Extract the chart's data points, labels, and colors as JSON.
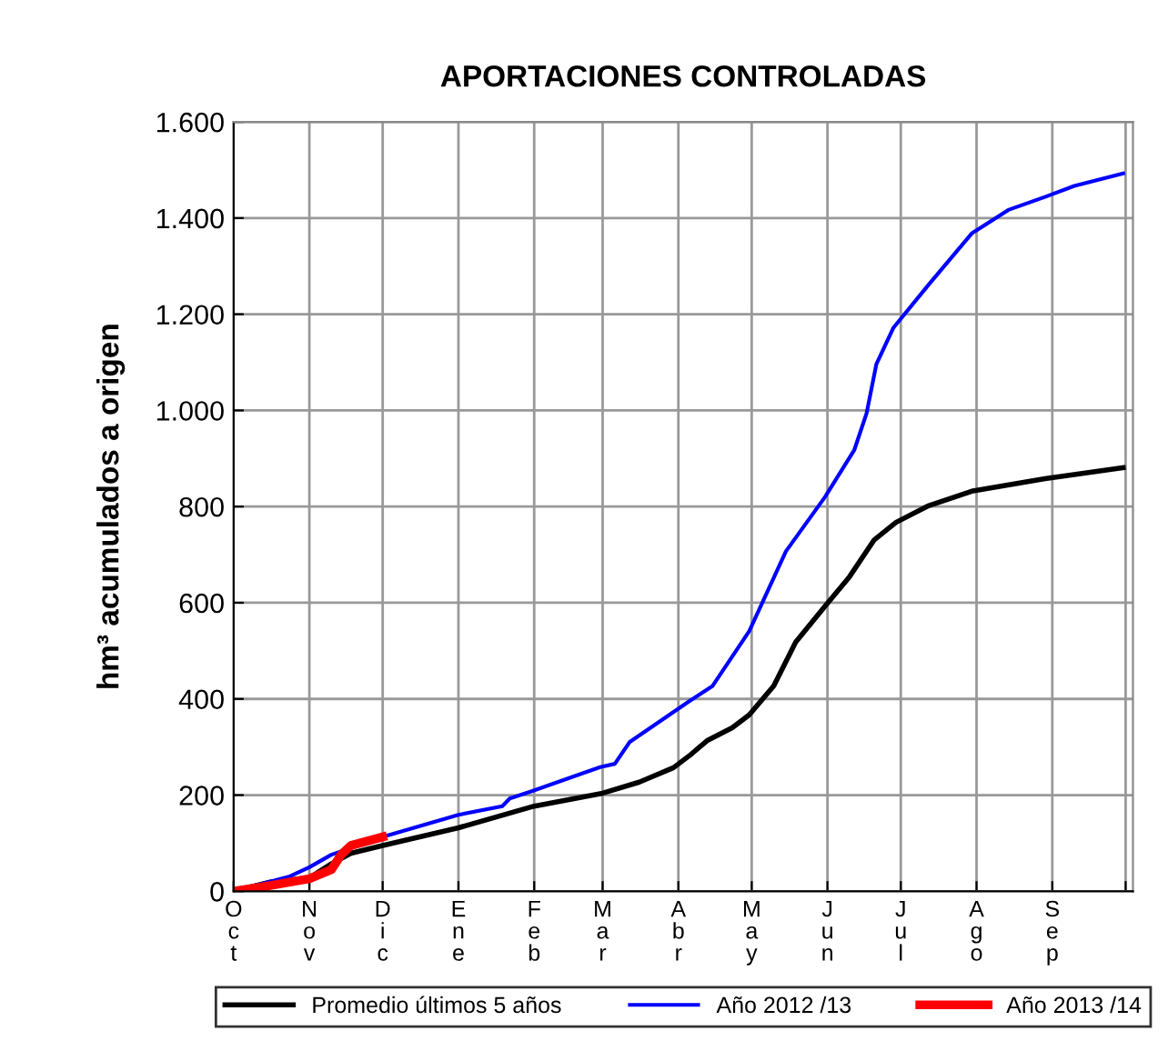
{
  "chart_data": {
    "type": "line",
    "title": "APORTACIONES CONTROLADAS",
    "ylabel": "hm³ acumulados a origen",
    "xlim": [
      "2012-10-01",
      "2013-10-04"
    ],
    "xticks": [
      {
        "value": "2012-10-01",
        "label": "Oct"
      },
      {
        "value": "2012-11-01",
        "label": "Nov"
      },
      {
        "value": "2012-12-01",
        "label": "Dic"
      },
      {
        "value": "2013-01-01",
        "label": "Ene"
      },
      {
        "value": "2013-02-01",
        "label": "Feb"
      },
      {
        "value": "2013-03-01",
        "label": "Mar"
      },
      {
        "value": "2013-04-01",
        "label": "Abr"
      },
      {
        "value": "2013-05-01",
        "label": "May"
      },
      {
        "value": "2013-06-01",
        "label": "Jun"
      },
      {
        "value": "2013-07-01",
        "label": "Jul"
      },
      {
        "value": "2013-08-01",
        "label": "Ago"
      },
      {
        "value": "2013-09-01",
        "label": "Sep"
      },
      {
        "value": "2013-10-01",
        "label": null
      }
    ],
    "ylim": [
      0,
      1600
    ],
    "yticks": [
      0,
      200,
      400,
      600,
      800,
      {
        "value": 1000,
        "label": "1.000"
      },
      {
        "value": 1200,
        "label": "1.200"
      },
      {
        "value": 1400,
        "label": "1.400"
      },
      {
        "value": 1600,
        "label": "1.600"
      }
    ],
    "grid": true,
    "legend": "bottom",
    "line_style": "solid",
    "marker": "none",
    "series": [
      {
        "name": "Promedio últimos 5 años",
        "color": "#000000",
        "x": [
          "2012-10-01",
          "2012-10-16",
          "2012-11-01",
          "2012-11-10",
          "2012-11-18",
          "2012-12-01",
          "2013-01-01",
          "2013-02-01",
          "2013-03-01",
          "2013-03-16",
          "2013-03-30",
          "2013-04-06",
          "2013-04-13",
          "2013-04-23",
          "2013-04-30",
          "2013-05-10",
          "2013-05-19",
          "2013-05-31",
          "2013-06-10",
          "2013-06-20",
          "2013-06-29",
          "2013-07-12",
          "2013-07-30",
          "2013-08-29",
          "2013-09-30"
        ],
        "values": [
          0,
          19,
          28,
          57,
          79,
          95,
          132,
          177,
          204,
          227,
          257,
          284,
          314,
          340,
          367,
          427,
          518,
          593,
          654,
          730,
          767,
          801,
          832,
          858,
          881
        ]
      },
      {
        "name": "Año 2012 /13",
        "color": "#0000ff",
        "x": [
          "2012-10-01",
          "2012-10-24",
          "2012-11-01",
          "2012-11-10",
          "2012-12-01",
          "2013-01-01",
          "2013-01-19",
          "2013-01-22",
          "2013-01-31",
          "2013-02-28",
          "2013-03-06",
          "2013-03-12",
          "2013-03-26",
          "2013-04-06",
          "2013-04-15",
          "2013-04-30",
          "2013-05-15",
          "2013-05-31",
          "2013-06-12",
          "2013-06-17",
          "2013-06-21",
          "2013-06-28",
          "2013-07-12",
          "2013-07-30",
          "2013-08-14",
          "2013-08-29",
          "2013-09-10",
          "2013-09-30"
        ],
        "values": [
          0,
          31,
          50,
          76,
          113,
          159,
          177,
          193,
          208,
          258,
          265,
          310,
          359,
          397,
          427,
          541,
          707,
          820,
          918,
          994,
          1096,
          1172,
          1259,
          1368,
          1417,
          1444,
          1467,
          1493
        ]
      },
      {
        "name": "Año 2013 /14",
        "color": "#ff0000",
        "x": [
          "2012-10-01",
          "2012-10-16",
          "2012-11-01",
          "2012-11-10",
          "2012-11-14",
          "2012-11-18",
          "2012-12-01"
        ],
        "values": [
          0,
          12,
          26,
          45,
          76,
          95,
          113
        ]
      }
    ]
  }
}
